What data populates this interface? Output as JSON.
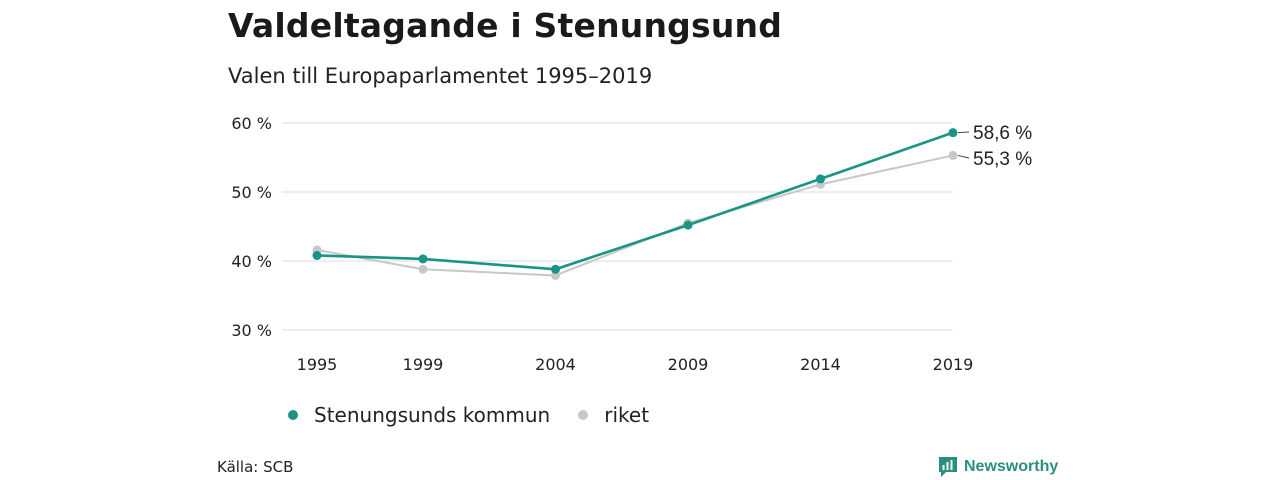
{
  "header": {
    "title": "Valdeltagande i Stenungsund",
    "subtitle": "Valen till Europaparlamentet 1995–2019"
  },
  "chart_data": {
    "type": "line",
    "title": "Valdeltagande i Stenungsund",
    "subtitle": "Valen till Europaparlamentet 1995–2019",
    "x": [
      1995,
      1999,
      2004,
      2009,
      2014,
      2019
    ],
    "x_tick_labels": [
      "1995",
      "1999",
      "2004",
      "2009",
      "2014",
      "2019"
    ],
    "ylim": [
      30,
      60
    ],
    "y_ticks": [
      30,
      40,
      50,
      60
    ],
    "y_tick_labels": [
      "30 %",
      "40 %",
      "50 %",
      "60 %"
    ],
    "grid": true,
    "legend_position": "bottom",
    "series": [
      {
        "name": "Stenungsunds kommun",
        "color": "#1a9484",
        "values": [
          40.8,
          40.3,
          38.8,
          45.2,
          51.9,
          58.6
        ],
        "end_label": "58,6 %"
      },
      {
        "name": "riket",
        "color": "#c8c8c8",
        "values": [
          41.6,
          38.8,
          37.9,
          45.5,
          51.1,
          55.3
        ],
        "end_label": "55,3 %"
      }
    ]
  },
  "legend": {
    "items": [
      {
        "label": "Stenungsunds kommun",
        "color": "#1a9484"
      },
      {
        "label": "riket",
        "color": "#c8c8c8"
      }
    ]
  },
  "footer": {
    "source": "Källa: SCB",
    "brand": "Newsworthy",
    "brand_icon": "newsworthy-logo-icon",
    "brand_color": "#2a8f80"
  }
}
